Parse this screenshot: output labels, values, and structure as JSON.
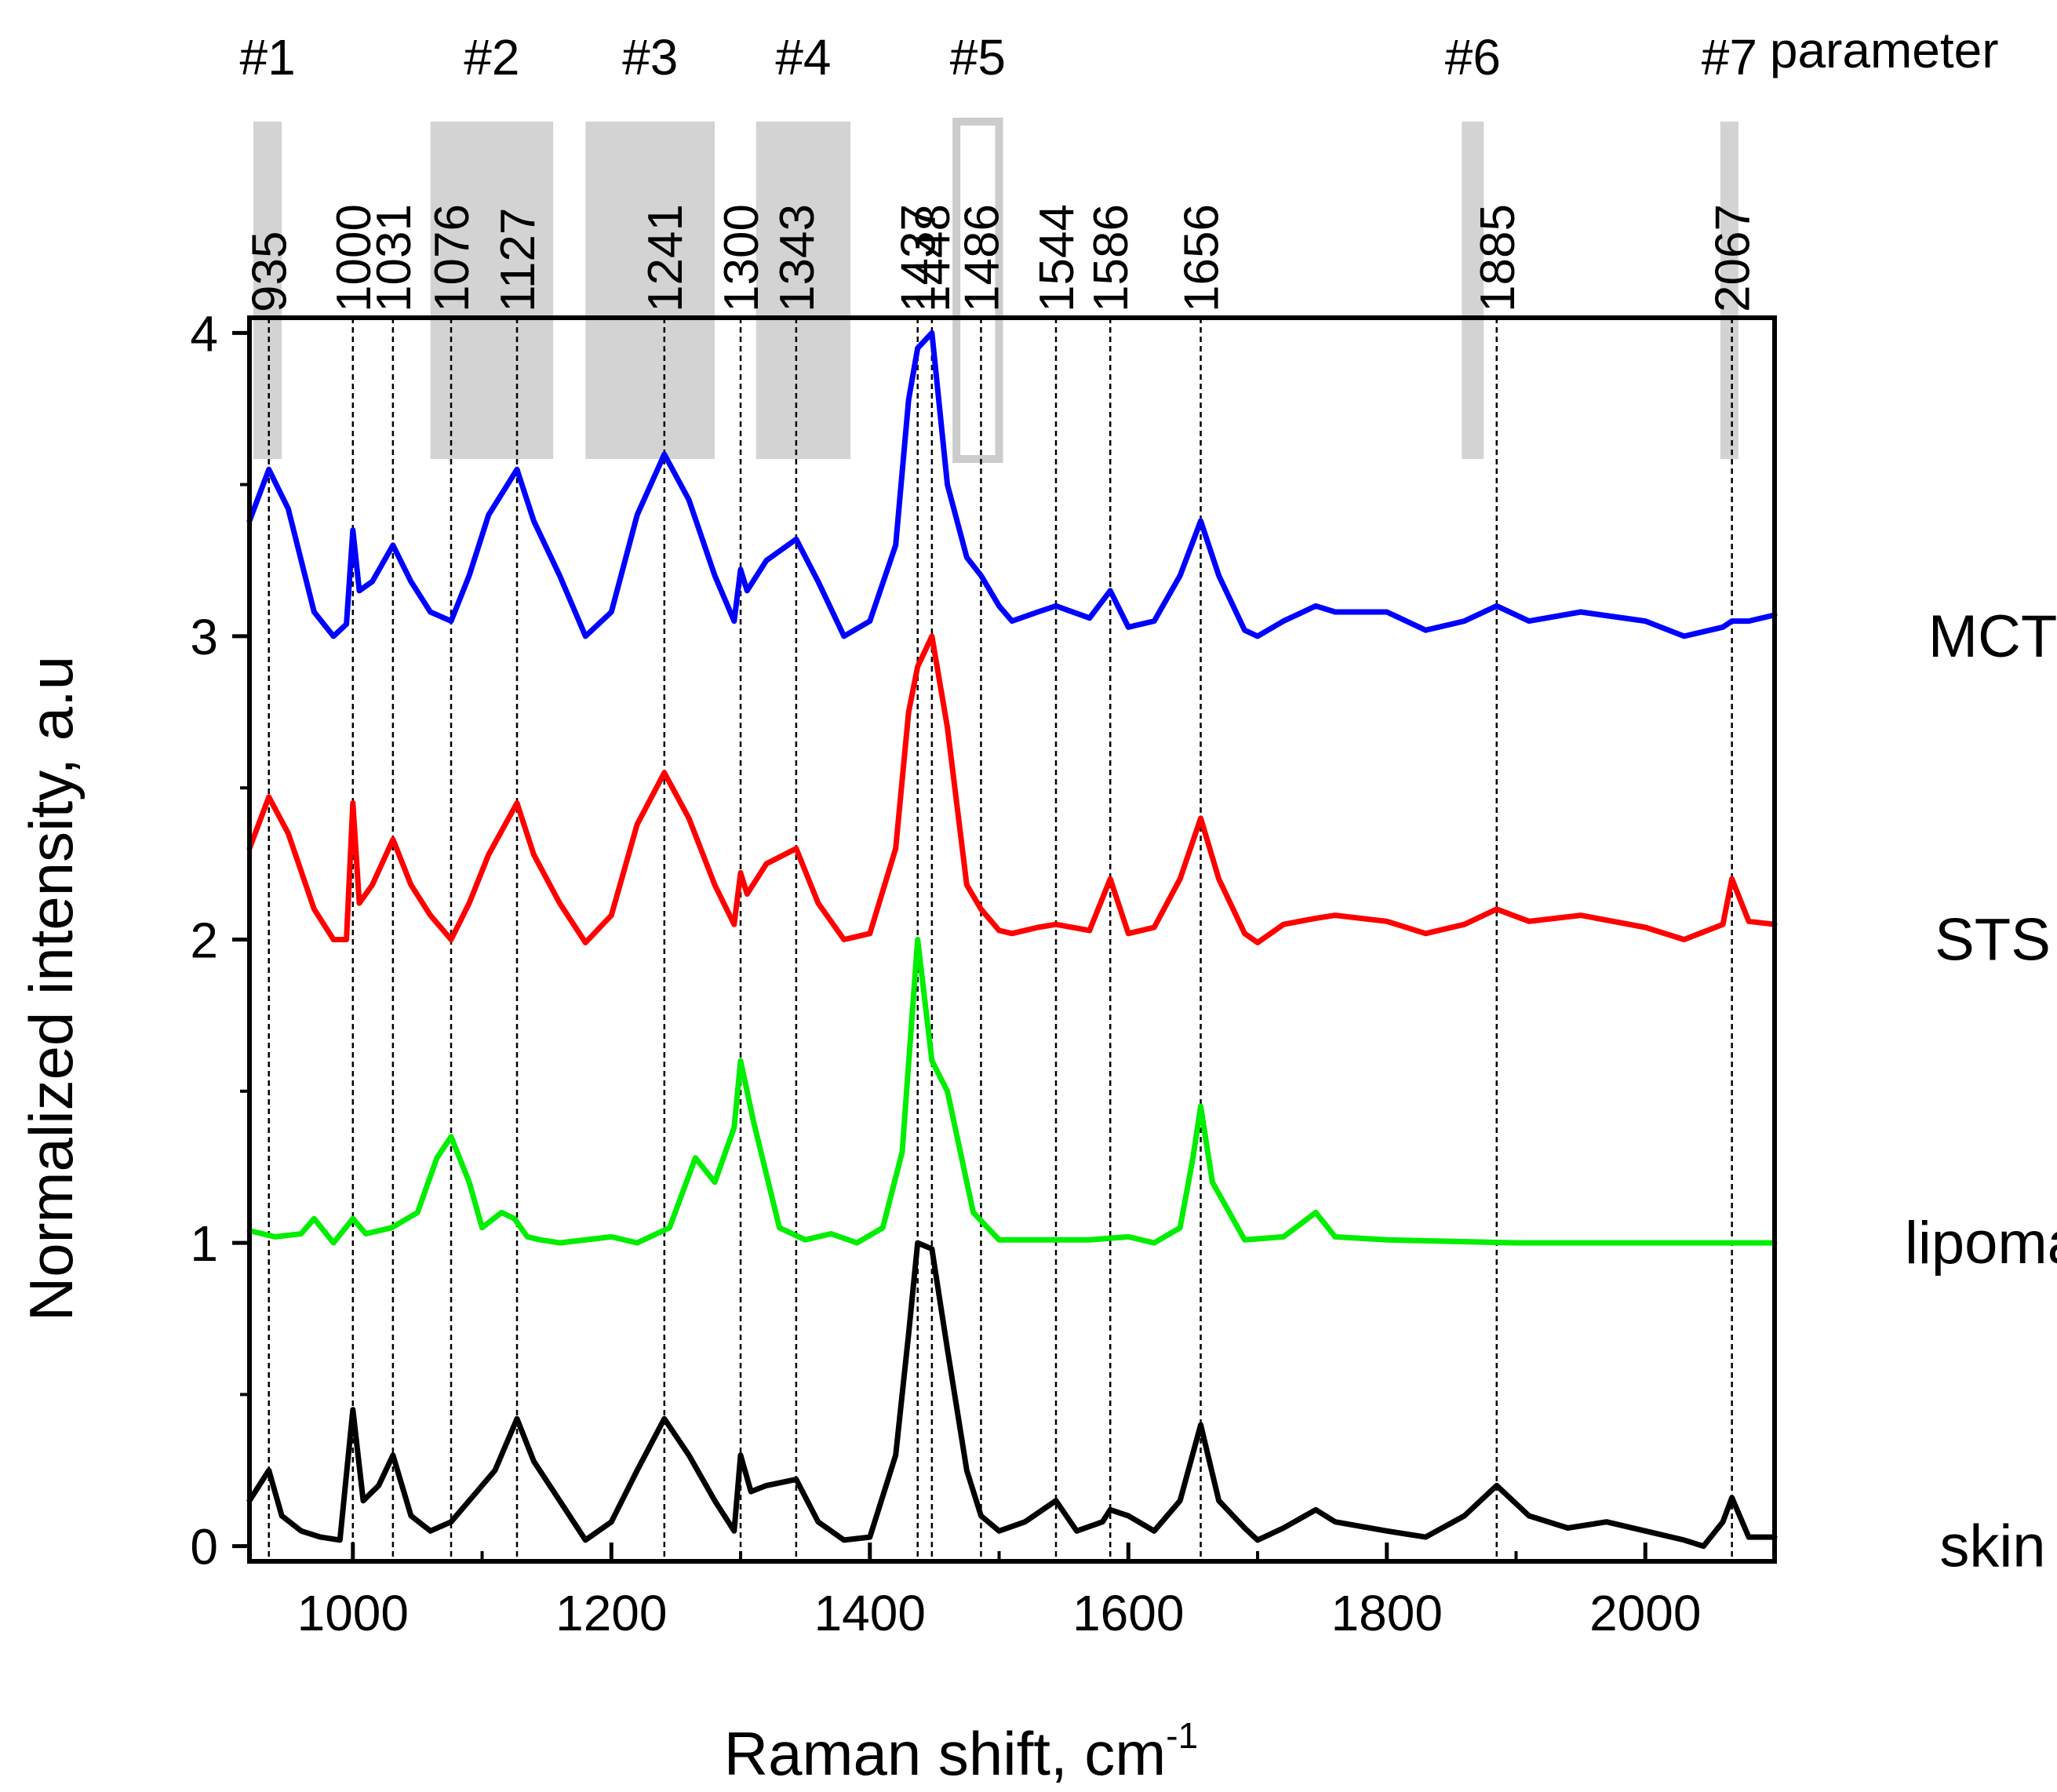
{
  "chart_data": {
    "type": "line",
    "title": "",
    "xlabel": "Raman shift, cm",
    "xlabel_superscript": "-1",
    "ylabel": "Normalized intensity, a.u",
    "xlim": [
      920,
      2100
    ],
    "ylim": [
      -0.05,
      4.05
    ],
    "x_ticks": [
      1000,
      1200,
      1400,
      1600,
      1800,
      2000
    ],
    "x_tick_labels": [
      "1000",
      "1200",
      "1400",
      "1600",
      "1800",
      "2000"
    ],
    "y_ticks": [
      0,
      1,
      2,
      3,
      4
    ],
    "y_tick_labels": [
      "0",
      "1",
      "2",
      "3",
      "4"
    ],
    "peak_lines": [
      935,
      1000,
      1031,
      1076,
      1127,
      1241,
      1300,
      1343,
      1437,
      1448,
      1486,
      1544,
      1586,
      1656,
      1885,
      2067
    ],
    "peak_labels": [
      "935",
      "1000",
      "1031",
      "1076",
      "1127",
      "1241",
      "1300",
      "1343",
      "1437",
      "1448",
      "1486",
      "1544",
      "1586",
      "1656",
      "1885",
      "2067"
    ],
    "regions": [
      {
        "label": "#1",
        "x_range": [
          923,
          945
        ],
        "style": "filled"
      },
      {
        "label": "#2",
        "x_range": [
          1060,
          1155
        ],
        "style": "filled"
      },
      {
        "label": "#3",
        "x_range": [
          1180,
          1280
        ],
        "style": "filled"
      },
      {
        "label": "#4",
        "x_range": [
          1312,
          1385
        ],
        "style": "filled"
      },
      {
        "label": "#5",
        "x_range": [
          1467,
          1500
        ],
        "style": "outline"
      },
      {
        "label": "#6",
        "x_range": [
          1858,
          1875
        ],
        "style": "filled"
      },
      {
        "label": "#7",
        "x_range": [
          2058,
          2072
        ],
        "style": "filled"
      }
    ],
    "region_header": "parameter",
    "series": [
      {
        "name": "MCT",
        "color": "#0000ff",
        "label": "MCT",
        "x": [
          920,
          935,
          950,
          970,
          985,
          995,
          1000,
          1005,
          1015,
          1031,
          1045,
          1060,
          1076,
          1090,
          1105,
          1127,
          1140,
          1160,
          1180,
          1200,
          1220,
          1241,
          1260,
          1280,
          1295,
          1300,
          1305,
          1320,
          1343,
          1360,
          1380,
          1400,
          1420,
          1430,
          1437,
          1448,
          1460,
          1475,
          1486,
          1500,
          1510,
          1530,
          1544,
          1570,
          1586,
          1600,
          1620,
          1640,
          1656,
          1670,
          1690,
          1700,
          1720,
          1745,
          1760,
          1800,
          1830,
          1860,
          1885,
          1910,
          1950,
          2000,
          2030,
          2060,
          2067,
          2080,
          2100
        ],
        "y": [
          3.38,
          3.55,
          3.42,
          3.08,
          3.0,
          3.04,
          3.35,
          3.15,
          3.18,
          3.3,
          3.18,
          3.08,
          3.05,
          3.2,
          3.4,
          3.55,
          3.38,
          3.2,
          3.0,
          3.08,
          3.4,
          3.6,
          3.45,
          3.2,
          3.05,
          3.22,
          3.15,
          3.25,
          3.32,
          3.18,
          3.0,
          3.05,
          3.3,
          3.78,
          3.95,
          4.0,
          3.5,
          3.26,
          3.2,
          3.1,
          3.05,
          3.08,
          3.1,
          3.06,
          3.15,
          3.03,
          3.05,
          3.2,
          3.38,
          3.2,
          3.02,
          3.0,
          3.05,
          3.1,
          3.08,
          3.08,
          3.02,
          3.05,
          3.1,
          3.05,
          3.08,
          3.05,
          3.0,
          3.03,
          3.05,
          3.05,
          3.07
        ]
      },
      {
        "name": "STS",
        "color": "#ff0000",
        "label": "STS",
        "x": [
          920,
          935,
          950,
          970,
          985,
          995,
          1000,
          1005,
          1015,
          1031,
          1045,
          1060,
          1076,
          1090,
          1105,
          1127,
          1140,
          1160,
          1180,
          1200,
          1220,
          1241,
          1260,
          1280,
          1295,
          1300,
          1305,
          1320,
          1343,
          1360,
          1380,
          1400,
          1420,
          1430,
          1437,
          1448,
          1460,
          1475,
          1486,
          1500,
          1510,
          1530,
          1544,
          1570,
          1586,
          1600,
          1620,
          1640,
          1656,
          1670,
          1690,
          1700,
          1720,
          1745,
          1760,
          1800,
          1830,
          1860,
          1885,
          1910,
          1950,
          2000,
          2030,
          2060,
          2067,
          2080,
          2100
        ],
        "y": [
          2.3,
          2.47,
          2.35,
          2.1,
          2.0,
          2.0,
          2.45,
          2.12,
          2.18,
          2.33,
          2.18,
          2.08,
          2.0,
          2.12,
          2.28,
          2.45,
          2.28,
          2.12,
          1.99,
          2.08,
          2.38,
          2.55,
          2.4,
          2.18,
          2.05,
          2.22,
          2.15,
          2.25,
          2.3,
          2.12,
          2.0,
          2.02,
          2.3,
          2.75,
          2.9,
          3.0,
          2.7,
          2.18,
          2.1,
          2.03,
          2.02,
          2.04,
          2.05,
          2.03,
          2.2,
          2.02,
          2.04,
          2.2,
          2.4,
          2.2,
          2.02,
          1.99,
          2.05,
          2.07,
          2.08,
          2.06,
          2.02,
          2.05,
          2.1,
          2.06,
          2.08,
          2.04,
          2.0,
          2.05,
          2.2,
          2.06,
          2.05
        ]
      },
      {
        "name": "lipoma",
        "color": "#00ee00",
        "label": "lipoma",
        "x": [
          920,
          940,
          960,
          970,
          985,
          1000,
          1010,
          1030,
          1050,
          1065,
          1076,
          1090,
          1100,
          1115,
          1125,
          1135,
          1145,
          1160,
          1200,
          1220,
          1245,
          1265,
          1280,
          1295,
          1300,
          1310,
          1330,
          1350,
          1370,
          1390,
          1410,
          1425,
          1437,
          1448,
          1460,
          1480,
          1500,
          1530,
          1570,
          1600,
          1620,
          1640,
          1650,
          1656,
          1665,
          1690,
          1720,
          1745,
          1760,
          1800,
          1900,
          2000,
          2100
        ],
        "y": [
          1.04,
          1.02,
          1.03,
          1.08,
          1.0,
          1.08,
          1.03,
          1.05,
          1.1,
          1.28,
          1.35,
          1.2,
          1.05,
          1.1,
          1.08,
          1.02,
          1.01,
          1.0,
          1.02,
          1.0,
          1.05,
          1.28,
          1.2,
          1.38,
          1.6,
          1.4,
          1.05,
          1.01,
          1.03,
          1.0,
          1.05,
          1.3,
          2.0,
          1.6,
          1.5,
          1.1,
          1.01,
          1.01,
          1.01,
          1.02,
          1.0,
          1.05,
          1.28,
          1.45,
          1.2,
          1.01,
          1.02,
          1.1,
          1.02,
          1.01,
          1.0,
          1.0,
          1.0
        ]
      },
      {
        "name": "skin",
        "color": "#000000",
        "label": "skin",
        "x": [
          920,
          935,
          945,
          960,
          975,
          990,
          1000,
          1008,
          1020,
          1031,
          1045,
          1060,
          1076,
          1090,
          1110,
          1127,
          1140,
          1160,
          1180,
          1200,
          1220,
          1241,
          1260,
          1280,
          1295,
          1300,
          1308,
          1320,
          1343,
          1360,
          1380,
          1400,
          1420,
          1430,
          1437,
          1448,
          1460,
          1475,
          1486,
          1500,
          1520,
          1544,
          1560,
          1580,
          1586,
          1600,
          1620,
          1640,
          1656,
          1670,
          1690,
          1700,
          1720,
          1745,
          1760,
          1800,
          1830,
          1860,
          1885,
          1910,
          1940,
          1970,
          2000,
          2030,
          2045,
          2060,
          2067,
          2080,
          2100
        ],
        "y": [
          0.15,
          0.25,
          0.1,
          0.05,
          0.03,
          0.02,
          0.45,
          0.15,
          0.2,
          0.3,
          0.1,
          0.05,
          0.08,
          0.15,
          0.25,
          0.42,
          0.28,
          0.15,
          0.02,
          0.08,
          0.25,
          0.42,
          0.3,
          0.15,
          0.05,
          0.3,
          0.18,
          0.2,
          0.22,
          0.08,
          0.02,
          0.03,
          0.3,
          0.7,
          1.0,
          0.98,
          0.65,
          0.25,
          0.1,
          0.05,
          0.08,
          0.15,
          0.05,
          0.08,
          0.12,
          0.1,
          0.05,
          0.15,
          0.4,
          0.15,
          0.06,
          0.02,
          0.06,
          0.12,
          0.08,
          0.05,
          0.03,
          0.1,
          0.2,
          0.1,
          0.06,
          0.08,
          0.05,
          0.02,
          0.0,
          0.08,
          0.16,
          0.03,
          0.03
        ]
      }
    ]
  }
}
